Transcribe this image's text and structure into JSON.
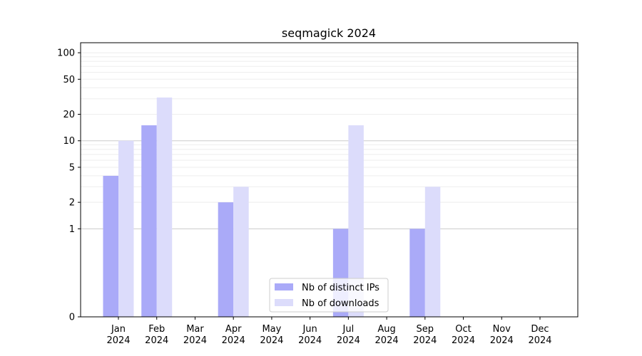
{
  "chart_data": {
    "type": "bar",
    "title": "seqmagick 2024",
    "xlabel": "",
    "ylabel": "",
    "y_scale": "symlog",
    "ylim": [
      0,
      130
    ],
    "y_ticks": [
      0,
      1,
      2,
      5,
      10,
      20,
      50,
      100
    ],
    "categories": [
      [
        "Jan",
        "2024"
      ],
      [
        "Feb",
        "2024"
      ],
      [
        "Mar",
        "2024"
      ],
      [
        "Apr",
        "2024"
      ],
      [
        "May",
        "2024"
      ],
      [
        "Jun",
        "2024"
      ],
      [
        "Jul",
        "2024"
      ],
      [
        "Aug",
        "2024"
      ],
      [
        "Sep",
        "2024"
      ],
      [
        "Oct",
        "2024"
      ],
      [
        "Nov",
        "2024"
      ],
      [
        "Dec",
        "2024"
      ]
    ],
    "series": [
      {
        "name": "Nb of distinct IPs",
        "color": "#aaaaf8",
        "values": [
          4,
          15,
          0,
          2,
          0,
          0,
          1,
          0,
          1,
          0,
          0,
          0
        ]
      },
      {
        "name": "Nb of downloads",
        "color": "#dcdcfb",
        "values": [
          10,
          31,
          0,
          3,
          0,
          0,
          15,
          0,
          3,
          0,
          0,
          0
        ]
      }
    ],
    "legend_position": "bottom-center",
    "grid": true
  }
}
